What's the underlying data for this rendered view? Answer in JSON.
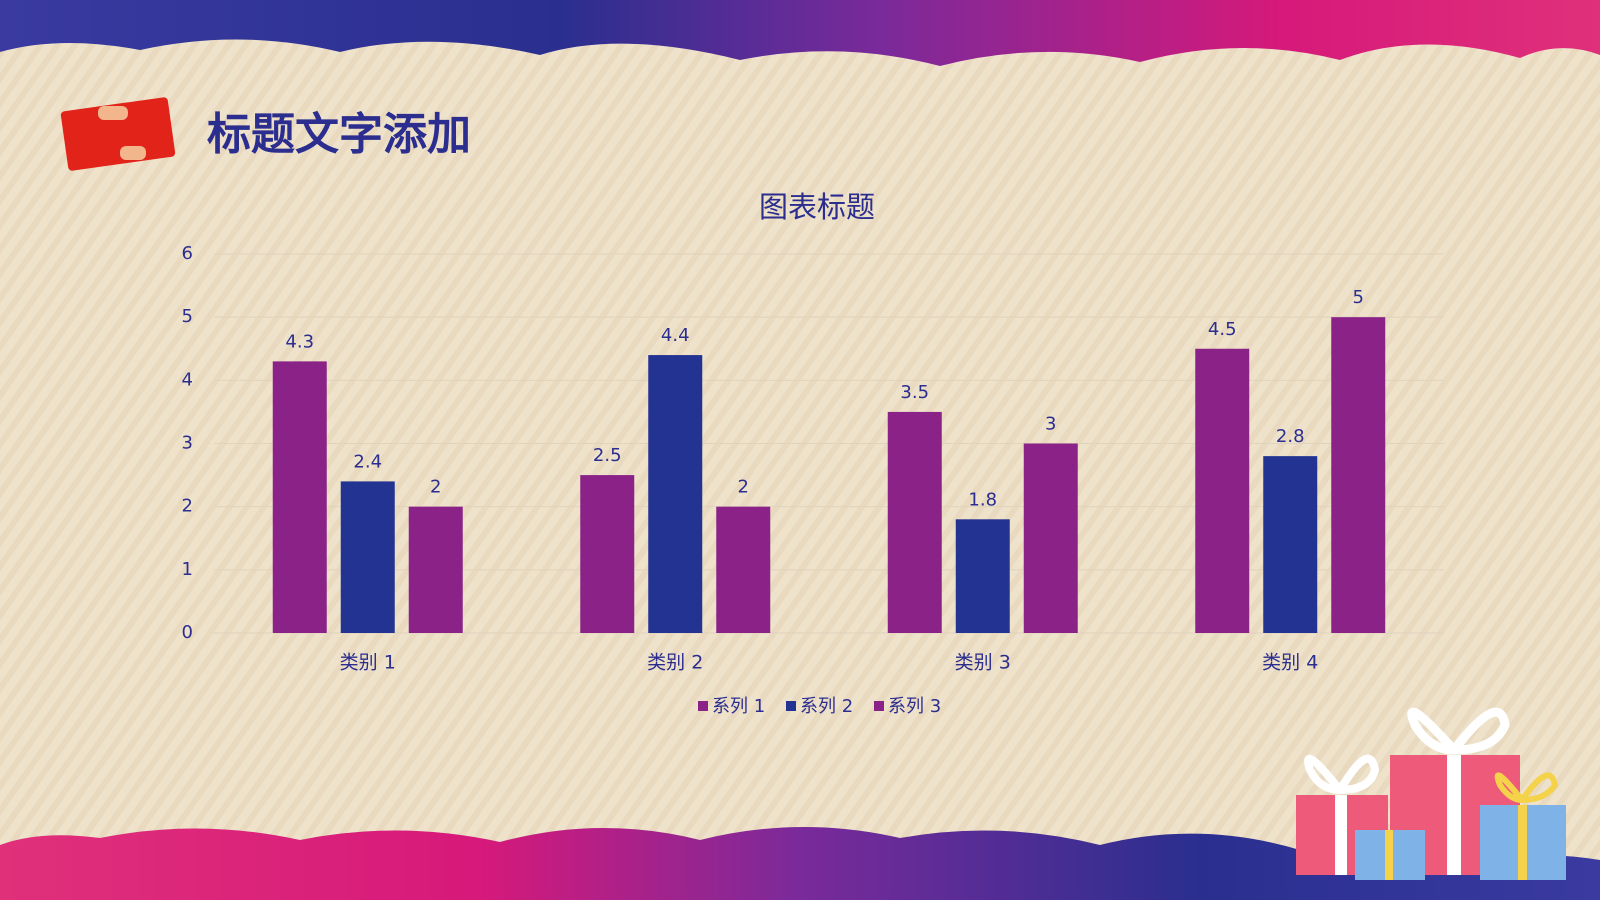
{
  "header": {
    "title": "标题文字添加"
  },
  "chart_data": {
    "type": "bar",
    "title": "图表标题",
    "categories": [
      "类别 1",
      "类别 2",
      "类别 3",
      "类别 4"
    ],
    "series": [
      {
        "name": "系列 1",
        "color": "#8b2288",
        "values": [
          4.3,
          2.5,
          3.5,
          4.5
        ]
      },
      {
        "name": "系列 2",
        "color": "#233392",
        "values": [
          2.4,
          4.4,
          1.8,
          2.8
        ]
      },
      {
        "name": "系列 3",
        "color": "#8b2288",
        "values": [
          2,
          2,
          3,
          5
        ]
      }
    ],
    "ylim": [
      0,
      6
    ],
    "yticks": [
      0,
      1,
      2,
      3,
      4,
      5,
      6
    ],
    "grid": true,
    "data_labels": true,
    "legend": "bottom"
  }
}
